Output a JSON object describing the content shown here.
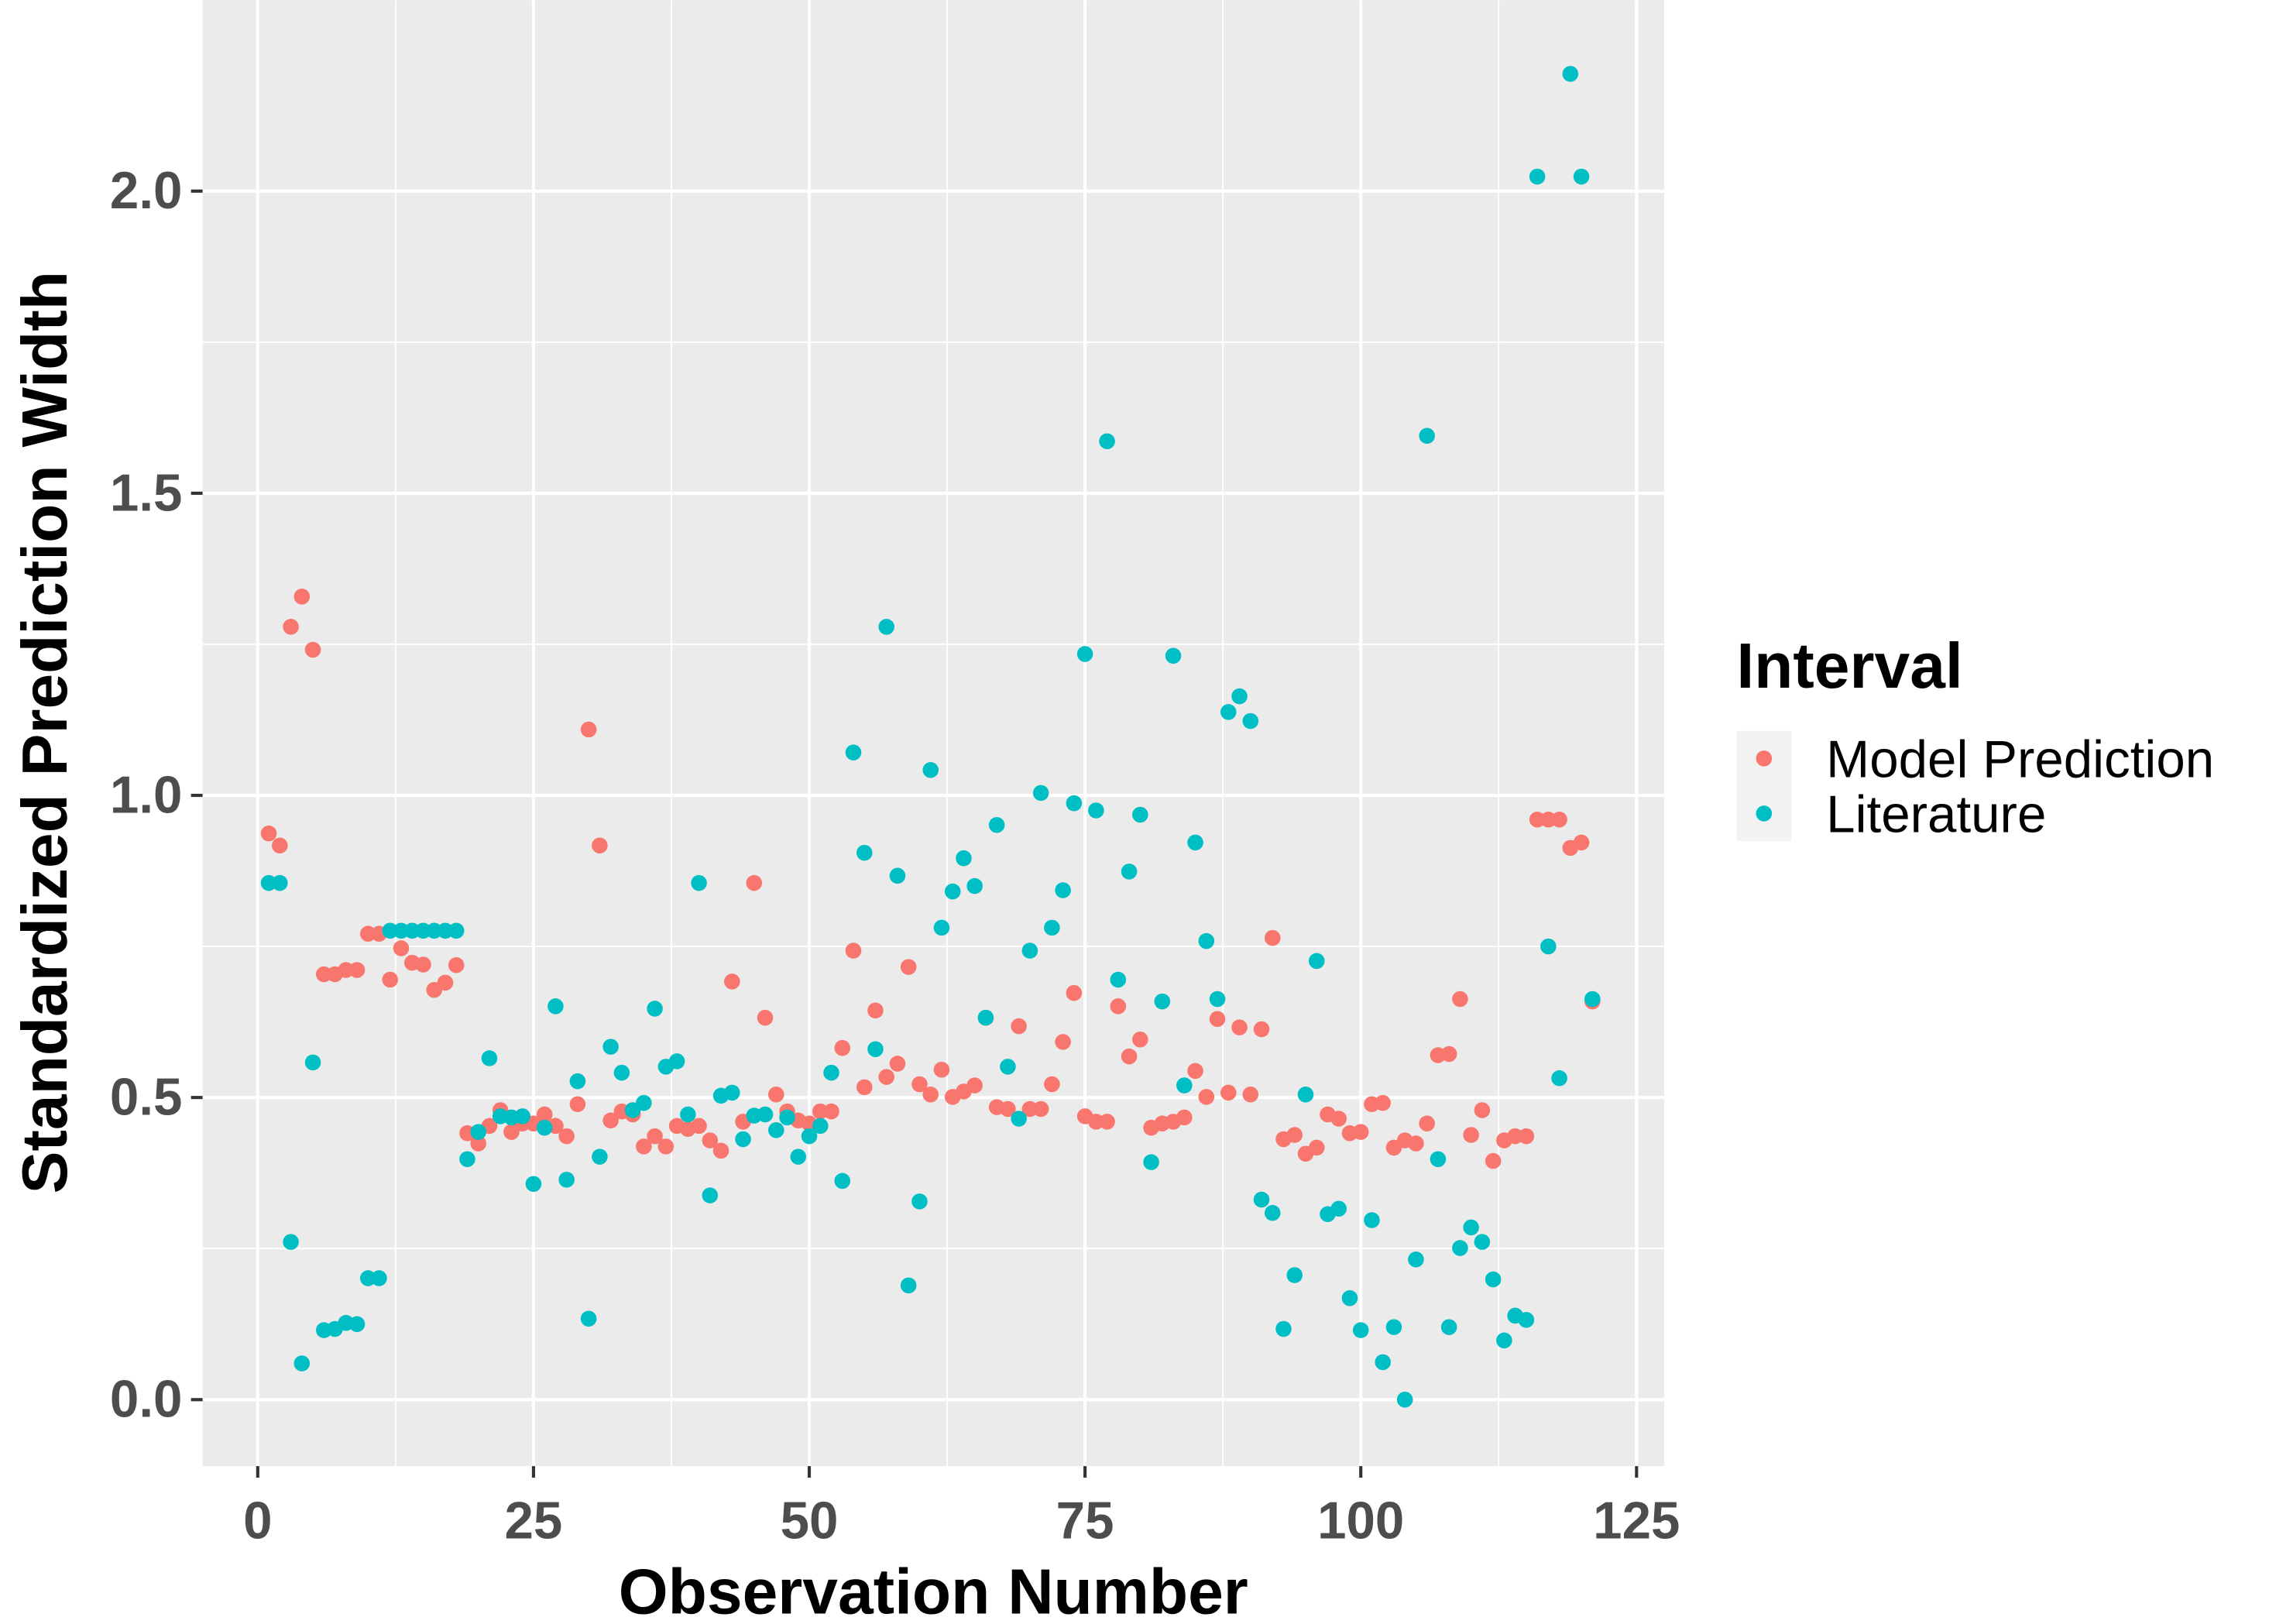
{
  "chart_data": {
    "type": "scatter",
    "x_label": "Observation Number",
    "y_label": "Standardized Prediction Width",
    "legend_title": "Interval",
    "legend_position": "right",
    "grid": true,
    "xlim": [
      -5,
      127.5
    ],
    "ylim": [
      -0.11,
      2.316
    ],
    "xticks": [
      0,
      25,
      50,
      75,
      100,
      125
    ],
    "yticks": [
      {
        "value": 0,
        "label": "0.0"
      },
      0.5,
      {
        "value": 1,
        "label": "1.0"
      },
      1.5,
      {
        "value": 2,
        "label": "2.0"
      }
    ],
    "x": [
      1,
      2,
      3,
      4,
      5,
      6,
      7,
      8,
      9,
      10,
      11,
      12,
      13,
      14,
      15,
      16,
      17,
      18,
      19,
      20,
      21,
      22,
      23,
      24,
      25,
      26,
      27,
      28,
      29,
      30,
      31,
      32,
      33,
      34,
      35,
      36,
      37,
      38,
      39,
      40,
      41,
      42,
      43,
      44,
      45,
      46,
      47,
      48,
      49,
      50,
      51,
      52,
      53,
      54,
      55,
      56,
      57,
      58,
      59,
      60,
      61,
      62,
      63,
      64,
      65,
      66,
      67,
      68,
      69,
      70,
      71,
      72,
      73,
      74,
      75,
      76,
      77,
      78,
      79,
      80,
      81,
      82,
      83,
      84,
      85,
      86,
      87,
      88,
      89,
      90,
      91,
      92,
      93,
      94,
      95,
      96,
      97,
      98,
      99,
      100,
      101,
      102,
      103,
      104,
      105,
      106,
      107,
      108,
      109,
      110,
      111,
      112,
      113,
      114,
      115,
      116,
      117,
      118,
      119,
      120,
      121
    ],
    "series": [
      {
        "name": "Model Prediction",
        "color": "#F8766D",
        "values": [
          0.937,
          0.917,
          1.279,
          1.329,
          1.241,
          0.704,
          0.704,
          0.711,
          0.711,
          0.771,
          0.771,
          0.695,
          0.747,
          0.723,
          0.72,
          0.678,
          0.69,
          0.719,
          0.441,
          0.424,
          0.453,
          0.479,
          0.443,
          0.457,
          0.457,
          0.472,
          0.453,
          0.436,
          0.489,
          1.109,
          0.917,
          0.462,
          0.477,
          0.472,
          0.419,
          0.436,
          0.419,
          0.453,
          0.448,
          0.453,
          0.429,
          0.412,
          0.692,
          0.46,
          0.855,
          0.632,
          0.505,
          0.477,
          0.462,
          0.457,
          0.477,
          0.477,
          0.582,
          0.743,
          0.517,
          0.644,
          0.534,
          0.556,
          0.716,
          0.522,
          0.505,
          0.546,
          0.501,
          0.51,
          0.52,
          0.632,
          0.484,
          0.481,
          0.618,
          0.481,
          0.481,
          0.522,
          0.592,
          0.673,
          0.469,
          0.46,
          0.46,
          0.651,
          0.568,
          0.596,
          0.45,
          0.457,
          0.46,
          0.467,
          0.544,
          0.501,
          0.63,
          0.508,
          0.616,
          0.505,
          0.613,
          0.764,
          0.431,
          0.438,
          0.407,
          0.417,
          0.472,
          0.465,
          0.441,
          0.443,
          0.489,
          0.491,
          0.417,
          0.429,
          0.424,
          0.457,
          0.57,
          0.572,
          0.663,
          0.438,
          0.479,
          0.395,
          0.429,
          0.436,
          0.436,
          0.96,
          0.96,
          0.96,
          0.913,
          0.922,
          0.659
        ]
      },
      {
        "name": "Literature",
        "color": "#00BFC4",
        "values": [
          0.855,
          0.855,
          0.261,
          0.06,
          0.558,
          0.115,
          0.117,
          0.127,
          0.125,
          0.201,
          0.201,
          0.776,
          0.776,
          0.776,
          0.776,
          0.776,
          0.776,
          0.776,
          0.398,
          0.443,
          0.565,
          0.469,
          0.467,
          0.469,
          0.357,
          0.45,
          0.651,
          0.364,
          0.527,
          0.134,
          0.402,
          0.584,
          0.541,
          0.479,
          0.491,
          0.647,
          0.551,
          0.56,
          0.472,
          0.855,
          0.338,
          0.503,
          0.508,
          0.431,
          0.47,
          0.472,
          0.446,
          0.467,
          0.402,
          0.436,
          0.453,
          0.541,
          0.362,
          1.071,
          0.905,
          0.58,
          1.279,
          0.867,
          0.189,
          0.328,
          1.042,
          0.781,
          0.841,
          0.896,
          0.85,
          0.632,
          0.951,
          0.551,
          0.465,
          0.743,
          1.004,
          0.781,
          0.843,
          0.987,
          1.234,
          0.975,
          1.586,
          0.695,
          0.874,
          0.968,
          0.393,
          0.659,
          1.231,
          0.52,
          0.922,
          0.759,
          0.663,
          1.138,
          1.164,
          1.123,
          0.331,
          0.309,
          0.117,
          0.206,
          0.505,
          0.726,
          0.307,
          0.316,
          0.168,
          0.115,
          0.297,
          0.062,
          0.12,
          0,
          0.232,
          1.595,
          0.398,
          0.12,
          0.251,
          0.285,
          0.261,
          0.199,
          0.098,
          0.139,
          0.132,
          2.024,
          0.75,
          0.532,
          2.194,
          2.024,
          0.663
        ]
      }
    ]
  }
}
